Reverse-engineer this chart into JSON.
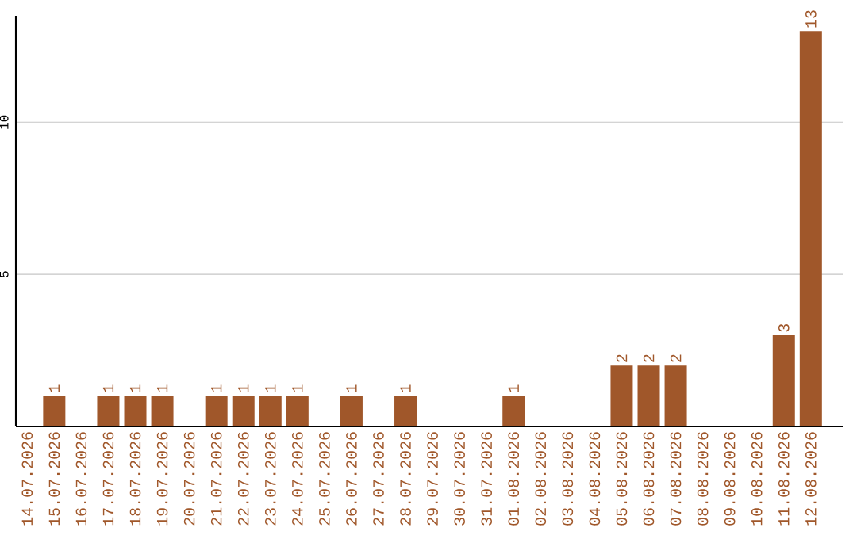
{
  "chart_data": {
    "type": "bar",
    "categories": [
      "14.07.2026",
      "15.07.2026",
      "16.07.2026",
      "17.07.2026",
      "18.07.2026",
      "19.07.2026",
      "20.07.2026",
      "21.07.2026",
      "22.07.2026",
      "23.07.2026",
      "24.07.2026",
      "25.07.2026",
      "26.07.2026",
      "27.07.2026",
      "28.07.2026",
      "29.07.2026",
      "30.07.2026",
      "31.07.2026",
      "01.08.2026",
      "02.08.2026",
      "03.08.2026",
      "04.08.2026",
      "05.08.2026",
      "06.08.2026",
      "07.08.2026",
      "08.08.2026",
      "09.08.2026",
      "10.08.2026",
      "11.08.2026",
      "12.08.2026"
    ],
    "values": [
      0,
      1,
      0,
      1,
      1,
      1,
      0,
      1,
      1,
      1,
      1,
      0,
      1,
      0,
      1,
      0,
      0,
      0,
      1,
      0,
      0,
      0,
      2,
      2,
      2,
      0,
      0,
      0,
      3,
      13
    ],
    "value_labels": [
      null,
      "1",
      null,
      "1",
      "1",
      "1",
      null,
      "1",
      "1",
      "1",
      "1",
      null,
      "1",
      null,
      "1",
      null,
      null,
      null,
      "1",
      null,
      null,
      null,
      "2",
      "2",
      "2",
      null,
      null,
      null,
      "3",
      "13"
    ],
    "color": "#a0572a",
    "ylim": [
      0,
      13.5
    ],
    "yticks": [
      5,
      10
    ],
    "grid": "y"
  }
}
